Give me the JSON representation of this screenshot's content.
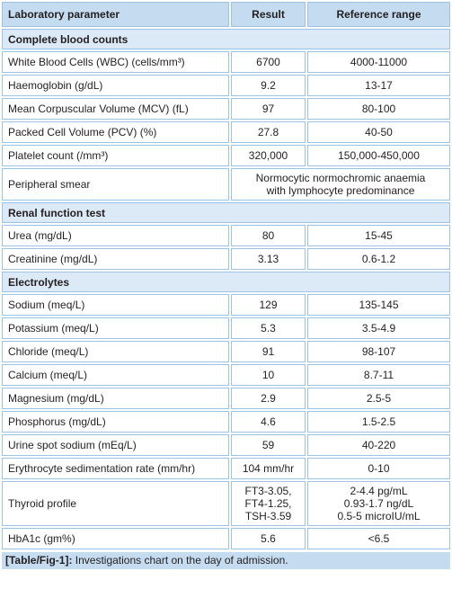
{
  "header": {
    "columns": [
      "Laboratory parameter",
      "Result",
      "Reference range"
    ]
  },
  "sections": [
    {
      "title": "Complete blood counts",
      "rows": [
        [
          "White Blood Cells (WBC) (cells/mm³)",
          "6700",
          "4000-11000"
        ],
        [
          "Haemoglobin (g/dL)",
          "9.2",
          "13-17"
        ],
        [
          "Mean Corpuscular Volume (MCV) (fL)",
          "97",
          "80-100"
        ],
        [
          "Packed Cell Volume (PCV) (%)",
          "27.8",
          "40-50"
        ],
        [
          "Platelet count (/mm³)",
          "320,000",
          "150,000-450,000"
        ],
        [
          "Peripheral smear",
          [
            "Normocytic normochromic anaemia",
            "with lymphocyte predominance"
          ]
        ]
      ]
    },
    {
      "title": "Renal function test",
      "rows": [
        [
          "Urea (mg/dL)",
          "80",
          "15-45"
        ],
        [
          "Creatinine (mg/dL)",
          "3.13",
          "0.6-1.2"
        ]
      ]
    },
    {
      "title": "Electrolytes",
      "rows": [
        [
          "Sodium (meq/L)",
          "129",
          "135-145"
        ],
        [
          "Potassium (meq/L)",
          "5.3",
          "3.5-4.9"
        ],
        [
          "Chloride (meq/L)",
          "91",
          "98-107"
        ],
        [
          "Calcium (meq/L)",
          "10",
          "8.7-11"
        ],
        [
          "Magnesium (mg/dL)",
          "2.9",
          "2.5-5"
        ],
        [
          "Phosphorus (mg/dL)",
          "4.6",
          "1.5-2.5"
        ],
        [
          "Urine spot sodium (mEq/L)",
          "59",
          "40-220"
        ],
        [
          "Erythrocyte sedimentation rate (mm/hr)",
          "104 mm/hr",
          "0-10"
        ],
        [
          "Thyroid profile",
          [
            "FT3-3.05,",
            "FT4-1.25,",
            "TSH-3.59"
          ],
          [
            "2-4.4 pg/mL",
            "0.93-1.7 ng/dL",
            "0.5-5 microIU/mL"
          ]
        ],
        [
          "HbA1c (gm%)",
          "5.6",
          "<6.5"
        ]
      ]
    }
  ],
  "caption": {
    "label": "[Table/Fig-1]:",
    "text": "Investigations chart on the day of admission."
  }
}
